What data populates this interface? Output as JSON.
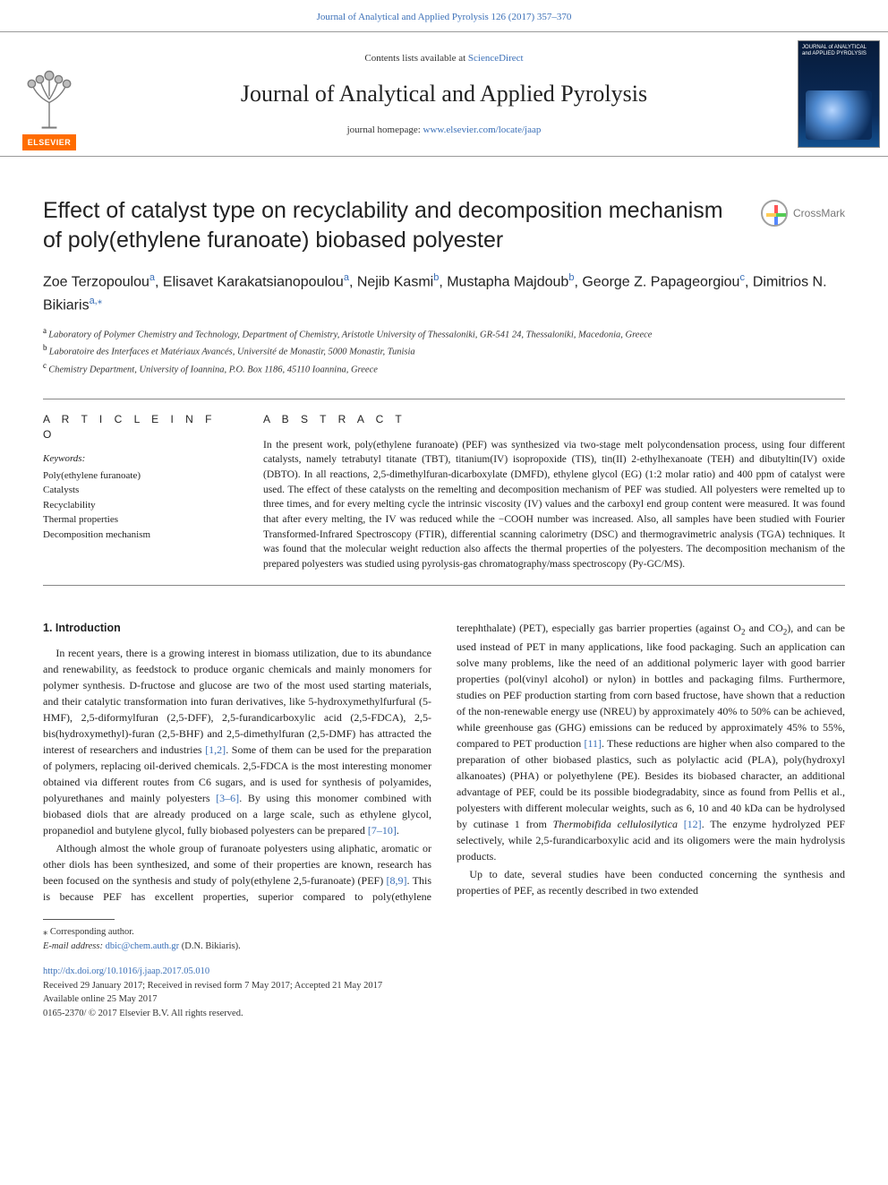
{
  "top_link": "Journal of Analytical and Applied Pyrolysis 126 (2017) 357–370",
  "header": {
    "contents_pre": "Contents lists available at ",
    "contents_link": "ScienceDirect",
    "journal_name": "Journal of Analytical and Applied Pyrolysis",
    "homepage_pre": "journal homepage: ",
    "homepage_url": "www.elsevier.com/locate/jaap",
    "elsevier_label": "ELSEVIER",
    "cover_title": "JOURNAL of ANALYTICAL and APPLIED PYROLYSIS"
  },
  "crossmark": "CrossMark",
  "title": "Effect of catalyst type on recyclability and decomposition mechanism of poly(ethylene furanoate) biobased polyester",
  "authors_html_parts": [
    {
      "name": "Zoe Terzopoulou",
      "aff": "a"
    },
    {
      "name": "Elisavet Karakatsianopoulou",
      "aff": "a"
    },
    {
      "name": "Nejib Kasmi",
      "aff": "b"
    },
    {
      "name": "Mustapha Majdoub",
      "aff": "b"
    },
    {
      "name": "George Z. Papageorgiou",
      "aff": "c"
    },
    {
      "name": "Dimitrios N. Bikiaris",
      "aff": "a",
      "corr": true
    }
  ],
  "affiliations": [
    {
      "mark": "a",
      "text": "Laboratory of Polymer Chemistry and Technology, Department of Chemistry, Aristotle University of Thessaloniki, GR-541 24, Thessaloniki, Macedonia, Greece"
    },
    {
      "mark": "b",
      "text": "Laboratoire des Interfaces et Matériaux Avancés, Université de Monastir, 5000 Monastir, Tunisia"
    },
    {
      "mark": "c",
      "text": "Chemistry Department, University of Ioannina, P.O. Box 1186, 45110 Ioannina, Greece"
    }
  ],
  "article_info_head": "A R T I C L E  I N F O",
  "abstract_head": "A B S T R A C T",
  "keywords_label": "Keywords:",
  "keywords": [
    "Poly(ethylene furanoate)",
    "Catalysts",
    "Recyclability",
    "Thermal properties",
    "Decomposition mechanism"
  ],
  "abstract": "In the present work, poly(ethylene furanoate) (PEF) was synthesized via two-stage melt polycondensation process, using four different catalysts, namely tetrabutyl titanate (TBT), titanium(IV) isopropoxide (TIS), tin(II) 2-ethylhexanoate (TEH) and dibutyltin(IV) oxide (DBTO). In all reactions, 2,5-dimethylfuran-dicarboxylate (DMFD), ethylene glycol (EG) (1:2 molar ratio) and 400 ppm of catalyst were used. The effect of these catalysts on the remelting and decomposition mechanism of PEF was studied. All polyesters were remelted up to three times, and for every melting cycle the intrinsic viscosity (IV) values and the carboxyl end group content were measured. It was found that after every melting, the IV was reduced while the −COOH number was increased. Also, all samples have been studied with Fourier Transformed-Infrared Spectroscopy (FTIR), differential scanning calorimetry (DSC) and thermogravimetric analysis (TGA) techniques. It was found that the molecular weight reduction also affects the thermal properties of the polyesters. The decomposition mechanism of the prepared polyesters was studied using pyrolysis-gas chromatography/mass spectroscopy (Py-GC/MS).",
  "intro_heading": "1. Introduction",
  "intro_p1a": "In recent years, there is a growing interest in biomass utilization, due to its abundance and renewability, as feedstock to produce organic chemicals and mainly monomers for polymer synthesis. D-fructose and glucose are two of the most used starting materials, and their catalytic transformation into furan derivatives, like 5-hydroxymethylfurfural (5-HMF), 2,5-diformylfuran (2,5-DFF), 2,5-furandicarboxylic acid (2,5-FDCA), 2,5-bis(hydroxymethyl)-furan (2,5-BHF) and 2,5-dimethylfuran (2,5-DMF) has attracted the interest of researchers and industries ",
  "cite_12": "[1,2]",
  "intro_p1b": ". Some of them can be used for the preparation of polymers, replacing oil-derived chemicals. 2,5-FDCA is the most interesting monomer obtained via different routes from C6 sugars, and is used for synthesis of polyamides, polyurethanes and mainly polyesters ",
  "cite_36": "[3–6]",
  "intro_p1c": ". By using this monomer combined with biobased diols that are already produced on a large scale, such as ethylene glycol, propanediol and butylene glycol, fully biobased polyesters can be prepared ",
  "cite_710": "[7–10]",
  "intro_p1d": ".",
  "intro_p2a": "Although almost the whole group of furanoate polyesters using aliphatic, aromatic or other diols has been synthesized, and some of their properties are known, research has been focused on the synthesis and study of poly(ethylene 2,5-furanoate) (PEF) ",
  "cite_89": "[8,9]",
  "intro_p2b": ". This is because PEF has excellent properties, superior compared to poly(ethylene terephthalate) (PET), especially gas barrier properties (against O",
  "sub2a": "2",
  "intro_p2c": " and CO",
  "sub2b": "2",
  "intro_p2d": "), and can be used instead of PET in many applications, like food packaging. Such an application can solve many problems, like the need of an additional polymeric layer with good barrier properties (pol(vinyl alcohol) or nylon) in bottles and packaging films. Furthermore, studies on PEF production starting from corn based fructose, have shown that a reduction of the non-renewable energy use (NREU) by approximately 40% to 50% can be achieved, while greenhouse gas (GHG) emissions can be reduced by approximately 45% to 55%, compared to PET production ",
  "cite_11": "[11]",
  "intro_p2e": ". These reductions are higher when also compared to the preparation of other biobased plastics, such as polylactic acid (PLA), poly(hydroxyl alkanoates) (PHA) or polyethylene (PE). Besides its biobased character, an additional advantage of PEF, could be its possible biodegradabity, since as found from Pellis et al., polyesters with different molecular weights, such as 6, 10 and 40 kDa can be hydrolysed by cutinase 1 from ",
  "ital_species": "Thermobifida cellulosilytica",
  "intro_p2f": " ",
  "cite_12b": "[12]",
  "intro_p2g": ". The enzyme hydrolyzed PEF selectively, while 2,5-furandicarboxylic acid and its oligomers were the main hydrolysis products.",
  "intro_p3": "Up to date, several studies have been conducted concerning the synthesis and properties of PEF, as recently described in two extended",
  "footer": {
    "corr_label": "⁎ Corresponding author.",
    "email_label": "E-mail address: ",
    "email": "dbic@chem.auth.gr",
    "email_owner": " (D.N. Bikiaris).",
    "doi": "http://dx.doi.org/10.1016/j.jaap.2017.05.010",
    "history": "Received 29 January 2017; Received in revised form 7 May 2017; Accepted 21 May 2017",
    "online": "Available online 25 May 2017",
    "copyright": "0165-2370/ © 2017 Elsevier B.V. All rights reserved."
  },
  "colors": {
    "link": "#3a6fb7",
    "elsevier_orange": "#ff6c00",
    "rule": "#888888"
  }
}
